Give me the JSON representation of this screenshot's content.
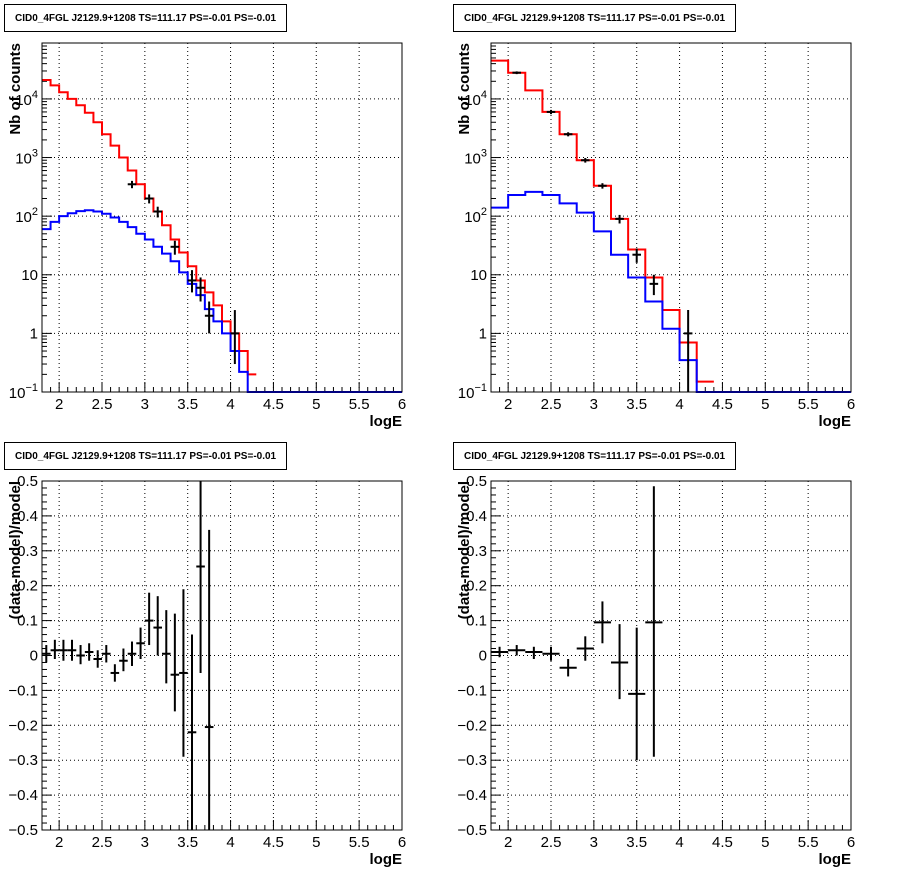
{
  "chart_data": [
    {
      "type": "line",
      "title": "CID0_4FGL J2129.9+1208 TS=111.17 PS=-0.01 PS=-0.01",
      "xlabel": "logE",
      "ylabel": "Nb of counts",
      "xlim": [
        1.8,
        6.0
      ],
      "ylim": [
        0.1,
        90000
      ],
      "yscale": "log",
      "grid": true,
      "xticks": [
        "2",
        "2.5",
        "3",
        "3.5",
        "4",
        "4.5",
        "5",
        "5.5",
        "6"
      ],
      "yticks": [
        "10^-1",
        "1",
        "10",
        "10^2",
        "10^3",
        "10^4"
      ],
      "series": [
        {
          "color": "#ff0000",
          "edges": [
            1.8,
            1.9,
            2.0,
            2.1,
            2.2,
            2.3,
            2.4,
            2.5,
            2.6,
            2.7,
            2.8,
            2.9,
            3.0,
            3.1,
            3.2,
            3.3,
            3.4,
            3.5,
            3.6,
            3.7,
            3.8,
            3.9,
            4.0,
            4.1,
            4.2,
            4.3
          ],
          "values": [
            21000,
            17000,
            13000,
            10000,
            7800,
            5800,
            4000,
            2500,
            1600,
            1000,
            600,
            350,
            200,
            120,
            70,
            40,
            24,
            14,
            8,
            5,
            3,
            1.6,
            1.0,
            0.5,
            0.2
          ]
        },
        {
          "color": "#0000ff",
          "edges": [
            1.8,
            1.9,
            2.0,
            2.1,
            2.2,
            2.3,
            2.4,
            2.5,
            2.6,
            2.7,
            2.8,
            2.9,
            3.0,
            3.1,
            3.2,
            3.3,
            3.4,
            3.5,
            3.6,
            3.7,
            3.8,
            3.9,
            4.0,
            4.1,
            4.2,
            4.3,
            6.0
          ],
          "values": [
            60,
            80,
            100,
            112,
            122,
            126,
            120,
            110,
            95,
            80,
            65,
            50,
            40,
            30,
            23,
            17,
            11,
            7,
            4.5,
            2.6,
            1.6,
            1.0,
            0.5,
            0.22,
            0.1,
            0.1
          ]
        }
      ],
      "points": [
        {
          "x": 2.85,
          "y": 350,
          "ylo": 300,
          "yhi": 400
        },
        {
          "x": 3.05,
          "y": 200,
          "ylo": 165,
          "yhi": 235
        },
        {
          "x": 3.15,
          "y": 120,
          "ylo": 95,
          "yhi": 145
        },
        {
          "x": 3.35,
          "y": 30,
          "ylo": 22,
          "yhi": 38
        },
        {
          "x": 3.55,
          "y": 8,
          "ylo": 5,
          "yhi": 12
        },
        {
          "x": 3.65,
          "y": 6,
          "ylo": 3.5,
          "yhi": 9
        },
        {
          "x": 3.75,
          "y": 2,
          "ylo": 1,
          "yhi": 3.5
        },
        {
          "x": 4.05,
          "y": 1,
          "ylo": 0.3,
          "yhi": 2.5
        }
      ]
    },
    {
      "type": "line",
      "title": "CID0_4FGL J2129.9+1208 TS=111.17 PS=-0.01 PS=-0.01",
      "xlabel": "logE",
      "ylabel": "Nb of counts",
      "xlim": [
        1.8,
        6.0
      ],
      "ylim": [
        0.1,
        90000
      ],
      "yscale": "log",
      "grid": true,
      "xticks": [
        "2",
        "2.5",
        "3",
        "3.5",
        "4",
        "4.5",
        "5",
        "5.5",
        "6"
      ],
      "yticks": [
        "10^-1",
        "1",
        "10",
        "10^2",
        "10^3",
        "10^4"
      ],
      "series": [
        {
          "color": "#ff0000",
          "edges": [
            1.8,
            2.0,
            2.2,
            2.4,
            2.6,
            2.8,
            3.0,
            3.2,
            3.4,
            3.6,
            3.8,
            4.0,
            4.2,
            4.4
          ],
          "values": [
            45000,
            28000,
            14000,
            6000,
            2500,
            900,
            330,
            90,
            27,
            9,
            2.5,
            0.7,
            0.15
          ]
        },
        {
          "color": "#0000ff",
          "edges": [
            1.8,
            2.0,
            2.2,
            2.4,
            2.6,
            2.8,
            3.0,
            3.2,
            3.4,
            3.6,
            3.8,
            4.0,
            4.2,
            4.4,
            6.0
          ],
          "values": [
            140,
            230,
            260,
            230,
            165,
            115,
            55,
            22,
            9,
            3.5,
            1.2,
            0.35,
            0.1,
            0.1
          ]
        }
      ],
      "points": [
        {
          "x": 2.1,
          "y": 28000,
          "ylo": 26500,
          "yhi": 29500
        },
        {
          "x": 2.5,
          "y": 6000,
          "ylo": 5500,
          "yhi": 6500
        },
        {
          "x": 2.7,
          "y": 2500,
          "ylo": 2300,
          "yhi": 2700
        },
        {
          "x": 2.9,
          "y": 900,
          "ylo": 820,
          "yhi": 980
        },
        {
          "x": 3.1,
          "y": 330,
          "ylo": 295,
          "yhi": 365
        },
        {
          "x": 3.3,
          "y": 90,
          "ylo": 75,
          "yhi": 105
        },
        {
          "x": 3.5,
          "y": 22,
          "ylo": 16,
          "yhi": 28
        },
        {
          "x": 3.7,
          "y": 7,
          "ylo": 4.5,
          "yhi": 10
        },
        {
          "x": 4.1,
          "y": 1,
          "ylo": 0.1,
          "yhi": 2.5
        }
      ]
    },
    {
      "type": "scatter",
      "title": "CID0_4FGL J2129.9+1208 TS=111.17 PS=-0.01 PS=-0.01",
      "xlabel": "logE",
      "ylabel": "(data-model)/model",
      "xlim": [
        1.8,
        6.0
      ],
      "ylim": [
        -0.5,
        0.5
      ],
      "grid": true,
      "xticks": [
        "2",
        "2.5",
        "3",
        "3.5",
        "4",
        "4.5",
        "5",
        "5.5",
        "6"
      ],
      "yticks": [
        "−0.5",
        "−0.4",
        "−0.3",
        "−0.2",
        "−0.1",
        "0",
        "0.1",
        "0.2",
        "0.3",
        "0.4",
        "0.5"
      ],
      "points": [
        {
          "x": 1.85,
          "y": 0.005,
          "ylo": -0.02,
          "yhi": 0.03,
          "xerr": 0.05
        },
        {
          "x": 1.95,
          "y": 0.015,
          "ylo": -0.01,
          "yhi": 0.045,
          "xerr": 0.05
        },
        {
          "x": 2.05,
          "y": 0.015,
          "ylo": -0.015,
          "yhi": 0.045,
          "xerr": 0.05
        },
        {
          "x": 2.15,
          "y": 0.015,
          "ylo": -0.015,
          "yhi": 0.045,
          "xerr": 0.05
        },
        {
          "x": 2.25,
          "y": 0.0,
          "ylo": -0.025,
          "yhi": 0.03,
          "xerr": 0.05
        },
        {
          "x": 2.35,
          "y": 0.01,
          "ylo": -0.015,
          "yhi": 0.035,
          "xerr": 0.05
        },
        {
          "x": 2.45,
          "y": -0.01,
          "ylo": -0.035,
          "yhi": 0.015,
          "xerr": 0.05
        },
        {
          "x": 2.55,
          "y": 0.005,
          "ylo": -0.02,
          "yhi": 0.03,
          "xerr": 0.05
        },
        {
          "x": 2.65,
          "y": -0.05,
          "ylo": -0.075,
          "yhi": -0.025,
          "xerr": 0.05
        },
        {
          "x": 2.75,
          "y": -0.015,
          "ylo": -0.045,
          "yhi": 0.02,
          "xerr": 0.05
        },
        {
          "x": 2.85,
          "y": 0.005,
          "ylo": -0.03,
          "yhi": 0.04,
          "xerr": 0.05
        },
        {
          "x": 2.95,
          "y": 0.035,
          "ylo": -0.01,
          "yhi": 0.08,
          "xerr": 0.05
        },
        {
          "x": 3.05,
          "y": 0.1,
          "ylo": 0.03,
          "yhi": 0.18,
          "xerr": 0.05
        },
        {
          "x": 3.15,
          "y": 0.08,
          "ylo": 0.0,
          "yhi": 0.17,
          "xerr": 0.05
        },
        {
          "x": 3.25,
          "y": 0.005,
          "ylo": -0.08,
          "yhi": 0.13,
          "xerr": 0.05
        },
        {
          "x": 3.35,
          "y": -0.055,
          "ylo": -0.16,
          "yhi": 0.12,
          "xerr": 0.05
        },
        {
          "x": 3.45,
          "y": -0.05,
          "ylo": -0.29,
          "yhi": 0.19,
          "xerr": 0.05
        },
        {
          "x": 3.55,
          "y": -0.22,
          "ylo": -0.5,
          "yhi": 0.06,
          "xerr": 0.05
        },
        {
          "x": 3.65,
          "y": 0.255,
          "ylo": -0.05,
          "yhi": 0.5,
          "xerr": 0.05
        },
        {
          "x": 3.75,
          "y": -0.205,
          "ylo": -0.5,
          "yhi": 0.36,
          "xerr": 0.05
        }
      ]
    },
    {
      "type": "scatter",
      "title": "CID0_4FGL J2129.9+1208 TS=111.17 PS=-0.01 PS=-0.01",
      "xlabel": "logE",
      "ylabel": "(data-model)/model",
      "xlim": [
        1.8,
        6.0
      ],
      "ylim": [
        -0.5,
        0.5
      ],
      "grid": true,
      "xticks": [
        "2",
        "2.5",
        "3",
        "3.5",
        "4",
        "4.5",
        "5",
        "5.5",
        "6"
      ],
      "yticks": [
        "−0.5",
        "−0.4",
        "−0.3",
        "−0.2",
        "−0.1",
        "0",
        "0.1",
        "0.2",
        "0.3",
        "0.4",
        "0.5"
      ],
      "points": [
        {
          "x": 1.9,
          "y": 0.01,
          "ylo": -0.005,
          "yhi": 0.025,
          "xerr": 0.1
        },
        {
          "x": 2.1,
          "y": 0.015,
          "ylo": 0.0,
          "yhi": 0.03,
          "xerr": 0.1
        },
        {
          "x": 2.3,
          "y": 0.01,
          "ylo": -0.01,
          "yhi": 0.025,
          "xerr": 0.1
        },
        {
          "x": 2.5,
          "y": 0.005,
          "ylo": -0.015,
          "yhi": 0.025,
          "xerr": 0.1
        },
        {
          "x": 2.7,
          "y": -0.035,
          "ylo": -0.06,
          "yhi": -0.01,
          "xerr": 0.1
        },
        {
          "x": 2.9,
          "y": 0.02,
          "ylo": -0.015,
          "yhi": 0.055,
          "xerr": 0.1
        },
        {
          "x": 3.1,
          "y": 0.095,
          "ylo": 0.035,
          "yhi": 0.155,
          "xerr": 0.1
        },
        {
          "x": 3.3,
          "y": -0.02,
          "ylo": -0.125,
          "yhi": 0.09,
          "xerr": 0.1
        },
        {
          "x": 3.5,
          "y": -0.11,
          "ylo": -0.3,
          "yhi": 0.08,
          "xerr": 0.1
        },
        {
          "x": 3.7,
          "y": 0.095,
          "ylo": -0.29,
          "yhi": 0.485,
          "xerr": 0.1
        }
      ]
    }
  ]
}
